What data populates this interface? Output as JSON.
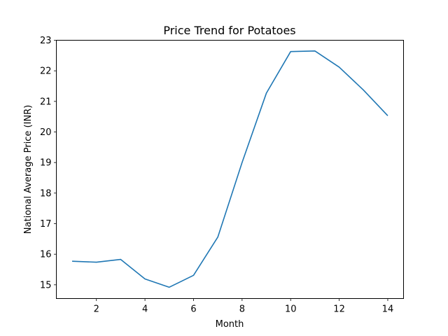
{
  "chart_data": {
    "type": "line",
    "title": "Price Trend for Potatoes",
    "xlabel": "Month",
    "ylabel": "National Average Price (INR)",
    "xlim": [
      0.35,
      14.65
    ],
    "ylim": [
      14.55,
      23.0
    ],
    "xticks": [
      2,
      4,
      6,
      8,
      10,
      12,
      14
    ],
    "yticks": [
      15,
      16,
      17,
      18,
      19,
      20,
      21,
      22,
      23
    ],
    "grid": false,
    "series": [
      {
        "color": "#1f77b4",
        "x": [
          1,
          2,
          3,
          4,
          5,
          6,
          7,
          8,
          9,
          10,
          11,
          12,
          13,
          14
        ],
        "y": [
          15.77,
          15.74,
          15.83,
          15.19,
          14.92,
          15.31,
          16.56,
          19.0,
          21.27,
          22.63,
          22.65,
          22.12,
          21.37,
          20.53
        ]
      }
    ]
  }
}
